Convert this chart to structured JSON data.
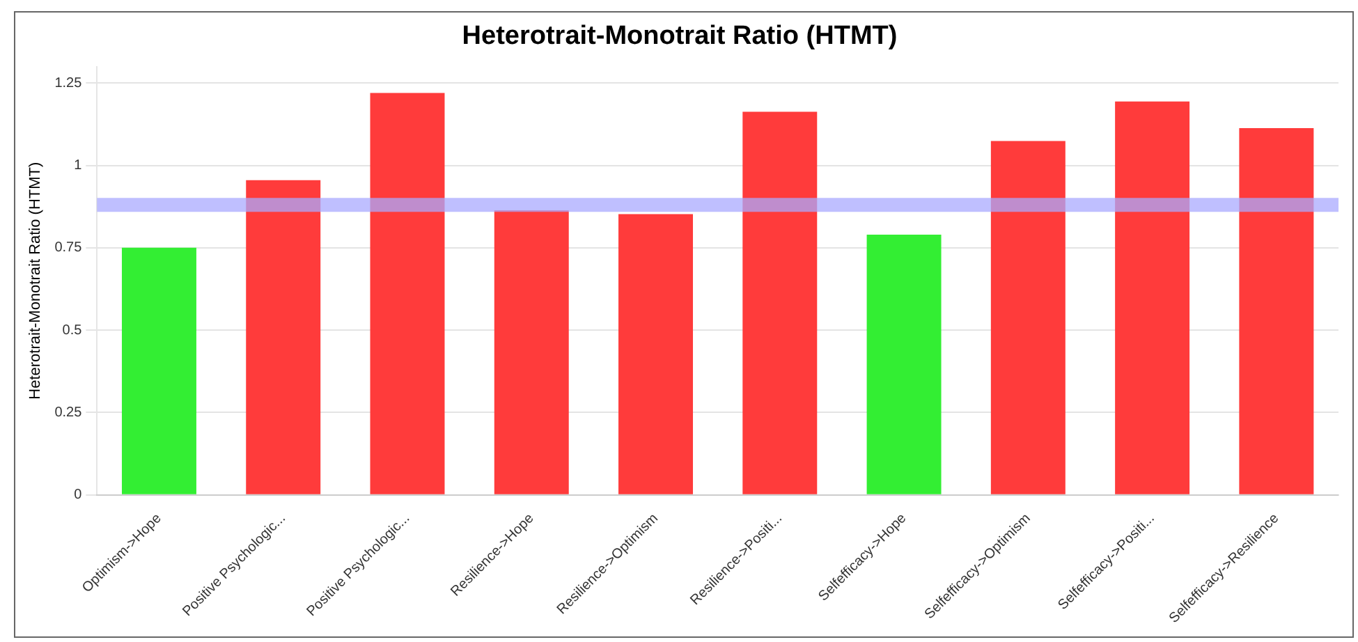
{
  "chart_data": {
    "type": "bar",
    "title": "Heterotrait-Monotrait Ratio (HTMT)",
    "ylabel": "Heterotrait-Monotrait Ratio (HTMT)",
    "categories": [
      "Optimism->Hope",
      "Positive Psychologic...",
      "Positive Psychologic...",
      "Resilience->Hope",
      "Resilience->Optimism",
      "Resilience->Positi...",
      "Selfefficacy->Hope",
      "Selfefficacy->Optimism",
      "Selfefficacy->Positi...",
      "Selfefficacy->Resilience"
    ],
    "values": [
      0.75,
      0.955,
      1.22,
      0.864,
      0.852,
      1.163,
      0.79,
      1.074,
      1.194,
      1.113
    ],
    "colors": [
      "#33ee33",
      "#ff3b3b",
      "#ff3b3b",
      "#ff3b3b",
      "#ff3b3b",
      "#ff3b3b",
      "#33ee33",
      "#ff3b3b",
      "#ff3b3b",
      "#ff3b3b"
    ],
    "ylim": [
      0,
      1.3
    ],
    "yticks": [
      0,
      0.25,
      0.5,
      0.75,
      1,
      1.25
    ],
    "ref_lines": [
      {
        "axis": "y",
        "value": 0.88,
        "color": "#aaaaff"
      }
    ],
    "grid": "y",
    "legend": false
  }
}
